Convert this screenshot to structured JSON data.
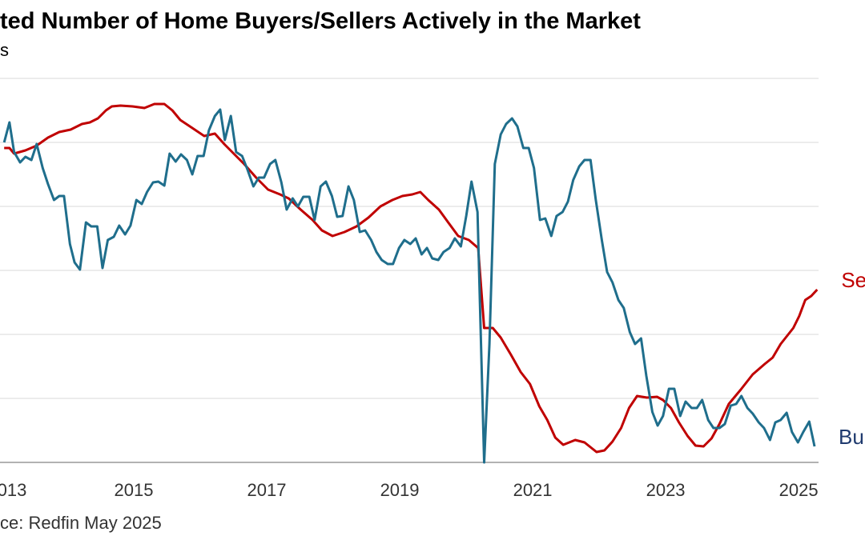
{
  "chart_data": {
    "type": "line",
    "title": "ted Number of Home Buyers/Sellers Actively in the Market",
    "subtitle": "s",
    "source": "ce: Redfin May 2025",
    "xlim": [
      2013,
      2025.3
    ],
    "xticks": [
      {
        "value": 2013,
        "label": "013"
      },
      2015,
      2017,
      2019,
      2021,
      2023,
      2025
    ],
    "ylim": [
      0,
      480
    ],
    "yticks": [
      0,
      80,
      160,
      240,
      320,
      400,
      480
    ],
    "grid": true,
    "series": [
      {
        "name": "Se",
        "color": "#c00000",
        "x": [
          2013.05,
          2013.13,
          2013.2,
          2013.37,
          2013.54,
          2013.71,
          2013.88,
          2014.05,
          2014.22,
          2014.34,
          2014.46,
          2014.58,
          2014.67,
          2014.8,
          2014.98,
          2015.16,
          2015.31,
          2015.46,
          2015.58,
          2015.7,
          2015.88,
          2016.06,
          2016.22,
          2016.36,
          2016.54,
          2016.66,
          2016.84,
          2017.02,
          2017.2,
          2017.33,
          2017.51,
          2017.69,
          2017.83,
          2017.99,
          2018.17,
          2018.35,
          2018.53,
          2018.71,
          2018.89,
          2019.04,
          2019.19,
          2019.31,
          2019.43,
          2019.59,
          2019.73,
          2019.88,
          2020.04,
          2020.18,
          2020.27,
          2020.4,
          2020.52,
          2020.67,
          2020.82,
          2020.96,
          2021.1,
          2021.22,
          2021.34,
          2021.46,
          2021.64,
          2021.78,
          2021.96,
          2022.08,
          2022.2,
          2022.33,
          2022.45,
          2022.57,
          2022.72,
          2022.87,
          2022.96,
          2023.08,
          2023.2,
          2023.33,
          2023.45,
          2023.57,
          2023.69,
          2023.81,
          2023.95,
          2024.13,
          2024.31,
          2024.49,
          2024.61,
          2024.73,
          2024.92,
          2025.01,
          2025.1,
          2025.19,
          2025.28
        ],
        "values": [
          393,
          393,
          386,
          390,
          396,
          406,
          413,
          416,
          423,
          425,
          430,
          440,
          445,
          446,
          445,
          443,
          448,
          448,
          440,
          428,
          418,
          408,
          411,
          398,
          383,
          373,
          356,
          341,
          335,
          330,
          316,
          303,
          290,
          283,
          288,
          295,
          306,
          320,
          328,
          333,
          335,
          338,
          328,
          316,
          300,
          283,
          278,
          268,
          168,
          168,
          156,
          135,
          113,
          98,
          70,
          53,
          31,
          22,
          28,
          25,
          13,
          15,
          26,
          43,
          68,
          83,
          81,
          82,
          78,
          68,
          50,
          33,
          21,
          20,
          30,
          48,
          73,
          91,
          110,
          123,
          131,
          148,
          168,
          183,
          203,
          208,
          216
        ]
      },
      {
        "name": "Bu",
        "color": "#1f6e8c",
        "label_color": "#1f3a6e",
        "x": [
          2013.05,
          2013.13,
          2013.2,
          2013.29,
          2013.37,
          2013.46,
          2013.54,
          2013.63,
          2013.71,
          2013.8,
          2013.88,
          2013.95,
          2014.04,
          2014.11,
          2014.19,
          2014.28,
          2014.36,
          2014.45,
          2014.53,
          2014.61,
          2014.7,
          2014.78,
          2014.87,
          2014.95,
          2015.04,
          2015.12,
          2015.2,
          2015.29,
          2015.37,
          2015.46,
          2015.54,
          2015.63,
          2015.71,
          2015.8,
          2015.88,
          2015.96,
          2016.05,
          2016.13,
          2016.22,
          2016.3,
          2016.37,
          2016.46,
          2016.54,
          2016.63,
          2016.71,
          2016.8,
          2016.88,
          2016.96,
          2017.05,
          2017.13,
          2017.22,
          2017.3,
          2017.39,
          2017.47,
          2017.55,
          2017.64,
          2017.72,
          2017.81,
          2017.89,
          2017.98,
          2018.06,
          2018.14,
          2018.23,
          2018.31,
          2018.4,
          2018.48,
          2018.57,
          2018.65,
          2018.73,
          2018.82,
          2018.9,
          2018.99,
          2019.07,
          2019.16,
          2019.24,
          2019.33,
          2019.41,
          2019.49,
          2019.58,
          2019.66,
          2019.75,
          2019.83,
          2019.92,
          2020.0,
          2020.08,
          2020.17,
          2020.27,
          2020.35,
          2020.43,
          2020.52,
          2020.6,
          2020.69,
          2020.77,
          2020.86,
          2020.94,
          2021.02,
          2021.11,
          2021.19,
          2021.28,
          2021.36,
          2021.45,
          2021.53,
          2021.61,
          2021.7,
          2021.78,
          2021.87,
          2021.95,
          2022.04,
          2022.12,
          2022.2,
          2022.29,
          2022.37,
          2022.46,
          2022.54,
          2022.63,
          2022.71,
          2022.8,
          2022.88,
          2022.96,
          2023.05,
          2023.13,
          2023.22,
          2023.3,
          2023.39,
          2023.47,
          2023.55,
          2023.64,
          2023.72,
          2023.81,
          2023.89,
          2023.98,
          2024.06,
          2024.14,
          2024.23,
          2024.31,
          2024.4,
          2024.48,
          2024.57,
          2024.65,
          2024.73,
          2024.82,
          2024.9,
          2024.99,
          2025.07,
          2025.16,
          2025.24
        ],
        "values": [
          400,
          425,
          388,
          375,
          382,
          378,
          398,
          368,
          348,
          328,
          333,
          333,
          273,
          250,
          241,
          300,
          295,
          295,
          243,
          278,
          282,
          296,
          285,
          296,
          328,
          323,
          338,
          350,
          351,
          346,
          386,
          376,
          385,
          378,
          360,
          383,
          383,
          415,
          433,
          441,
          403,
          433,
          388,
          383,
          366,
          345,
          356,
          356,
          373,
          378,
          350,
          316,
          330,
          320,
          332,
          332,
          303,
          345,
          351,
          333,
          307,
          308,
          345,
          328,
          288,
          290,
          278,
          263,
          253,
          248,
          248,
          268,
          278,
          273,
          280,
          260,
          268,
          255,
          253,
          263,
          268,
          280,
          270,
          308,
          351,
          313,
          0,
          148,
          373,
          410,
          423,
          430,
          420,
          393,
          393,
          368,
          303,
          305,
          283,
          308,
          313,
          326,
          353,
          370,
          378,
          378,
          328,
          278,
          238,
          225,
          203,
          193,
          163,
          148,
          155,
          108,
          63,
          46,
          58,
          92,
          92,
          58,
          76,
          68,
          68,
          78,
          53,
          43,
          43,
          48,
          71,
          73,
          83,
          68,
          61,
          50,
          43,
          28,
          50,
          53,
          62,
          38,
          25,
          38,
          51,
          20
        ]
      }
    ]
  }
}
